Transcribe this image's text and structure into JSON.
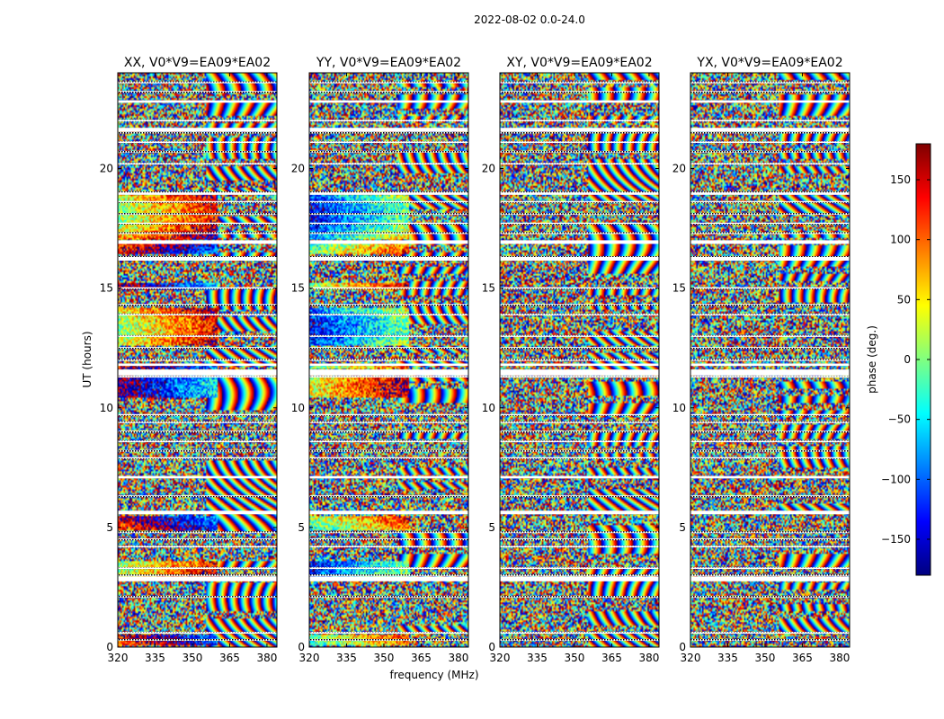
{
  "figure": {
    "suptitle": "2022-08-02 0.0-24.0",
    "xlabel": "frequency (MHz)",
    "ylabel": "UT (hours)",
    "colorbar_label": "phase (deg.)"
  },
  "chart_data": {
    "type": "heatmap",
    "x_range": [
      320,
      384
    ],
    "x_ticks": [
      320,
      335,
      350,
      365,
      380
    ],
    "y_range": [
      0,
      24
    ],
    "y_ticks": [
      0,
      5,
      10,
      15,
      20
    ],
    "colorbar": {
      "range": [
        -180,
        180
      ],
      "ticks": [
        150,
        100,
        50,
        0,
        -50,
        -100,
        -150
      ],
      "tick_labels": [
        "150",
        "100",
        "50",
        "0",
        "−50",
        "−100",
        "−150"
      ],
      "colormap": "jet"
    },
    "panels": [
      {
        "title": "XX, V0*V9=EA09*EA02",
        "polarization": "XX"
      },
      {
        "title": "YY, V0*V9=EA09*EA02",
        "polarization": "YY"
      },
      {
        "title": "XY, V0*V9=EA09*EA02",
        "polarization": "XY"
      },
      {
        "title": "YX, V0*V9=EA09*EA02",
        "polarization": "YX"
      }
    ],
    "flagged_ut_hours": [
      0.3,
      0.6,
      2.1,
      2.8,
      3.0,
      3.3,
      4.2,
      4.5,
      4.8,
      5.6,
      6.3,
      7.1,
      7.9,
      8.2,
      8.6,
      9.0,
      9.4,
      9.7,
      11.3,
      11.8,
      12.0,
      12.5,
      13.0,
      13.9,
      14.3,
      15.0,
      16.3,
      16.9,
      17.3,
      17.7,
      18.1,
      18.6,
      19.0,
      20.2,
      20.7,
      21.1,
      21.5,
      22.0,
      22.8,
      23.2,
      23.6
    ],
    "data_gap_ut_hours": [
      [
        2.75,
        2.95
      ],
      [
        5.55,
        5.7
      ],
      [
        7.05,
        7.15
      ],
      [
        11.35,
        11.6
      ],
      [
        11.75,
        11.85
      ],
      [
        16.15,
        16.3
      ],
      [
        16.85,
        17.0
      ],
      [
        18.9,
        19.0
      ],
      [
        21.55,
        21.7
      ],
      [
        22.75,
        22.85
      ]
    ]
  }
}
